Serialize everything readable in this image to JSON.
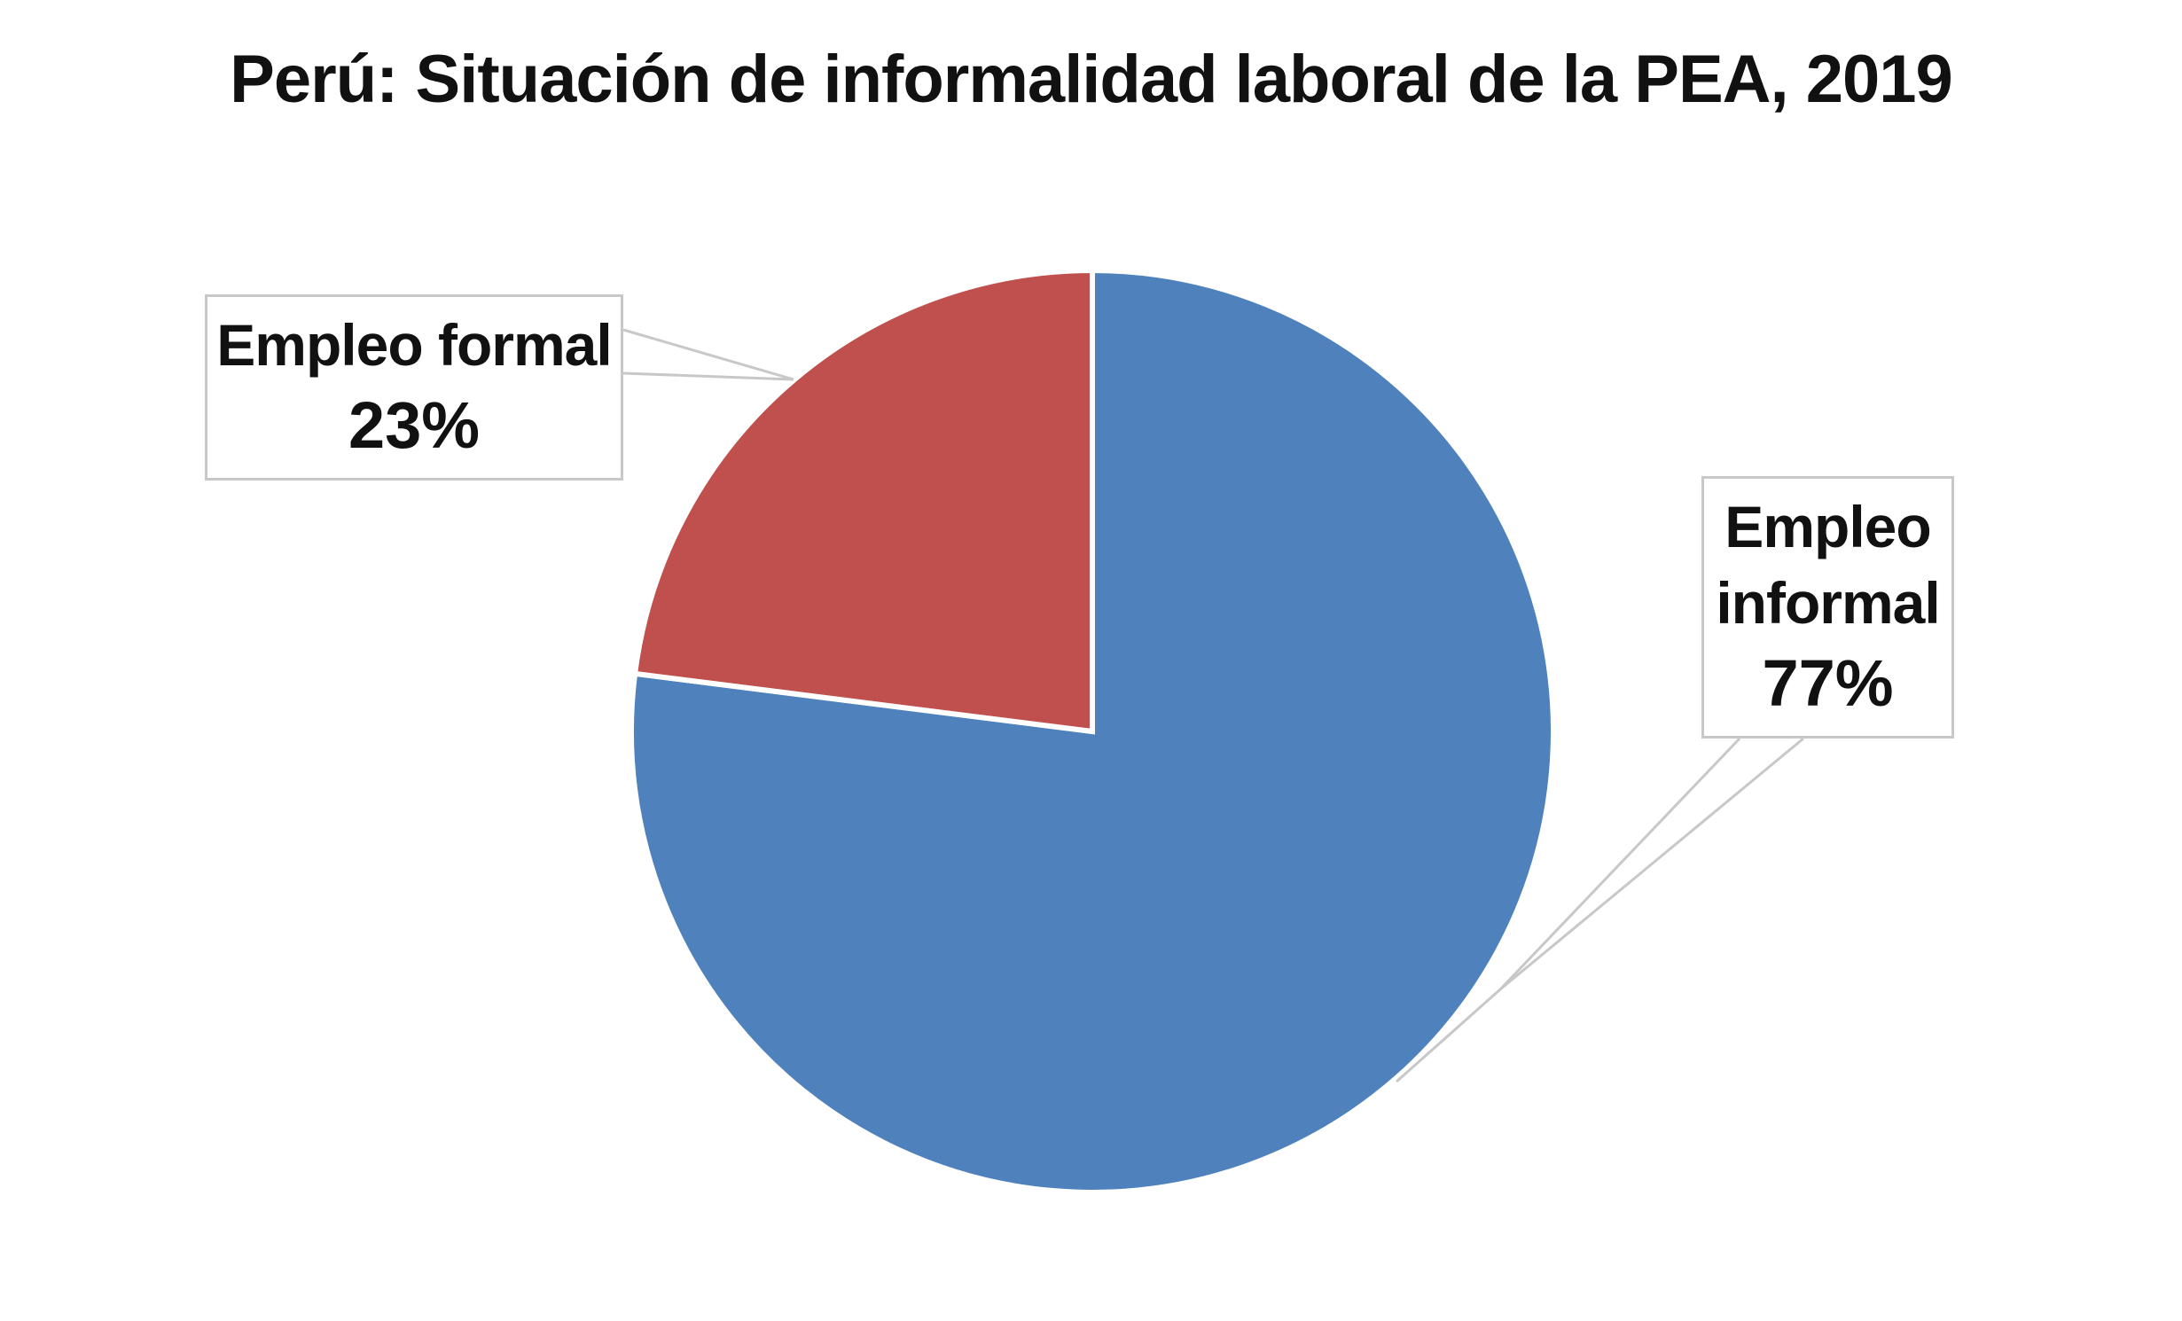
{
  "chart_data": {
    "type": "pie",
    "title": "Perú: Situación de informalidad laboral de la PEA, 2019",
    "slices": [
      {
        "label": "Empleo informal",
        "value": 77,
        "value_label": "77%",
        "color": "#4f81bd"
      },
      {
        "label": "Empleo formal",
        "value": 23,
        "value_label": "23%",
        "color": "#c0504d"
      }
    ],
    "start": "12 o'clock",
    "direction": "clockwise",
    "legend": "none",
    "data_labels": "callout boxes with leader lines"
  }
}
